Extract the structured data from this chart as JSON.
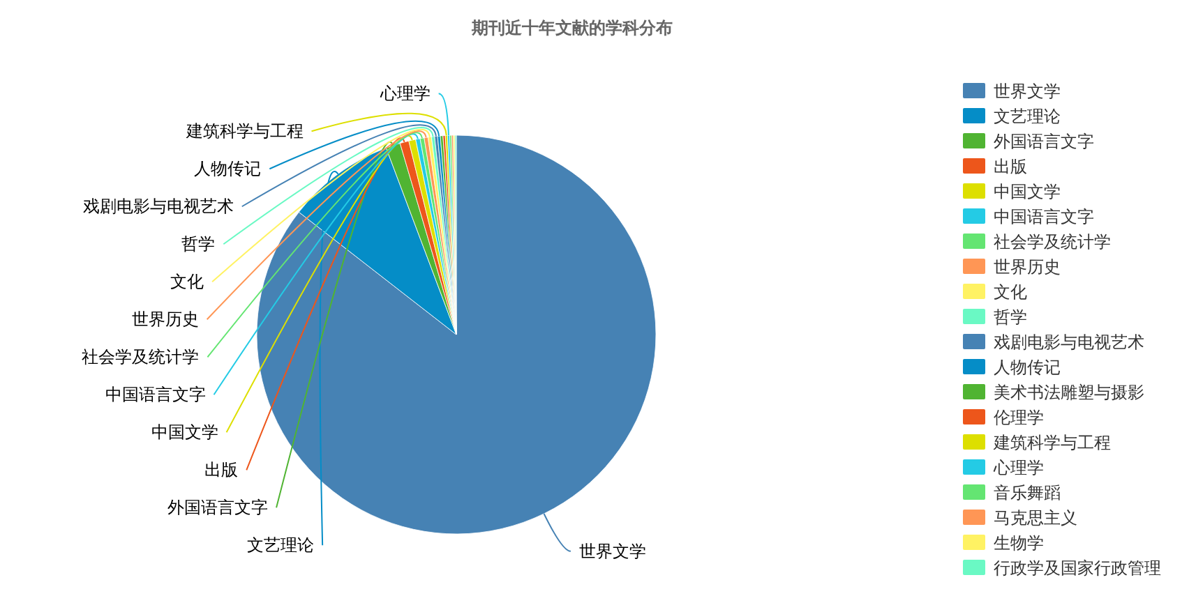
{
  "chart_data": {
    "type": "pie",
    "title": "期刊近十年文献的学科分布",
    "categories": [
      "世界文学",
      "文艺理论",
      "外国语言文字",
      "出版",
      "中国文学",
      "中国语言文字",
      "社会学及统计学",
      "世界历史",
      "文化",
      "哲学",
      "戏剧电影与电视艺术",
      "人物传记",
      "美术书法雕塑与摄影",
      "伦理学",
      "建筑科学与工程",
      "心理学",
      "音乐舞蹈",
      "马克思主义",
      "生物学",
      "行政学及国家行政管理"
    ],
    "values": [
      85.53,
      8.75,
      1.17,
      0.72,
      0.56,
      0.36,
      0.33,
      0.31,
      0.28,
      0.25,
      0.24,
      0.22,
      0.21,
      0.19,
      0.18,
      0.17,
      0.15,
      0.14,
      0.13,
      0.11
    ],
    "colors": [
      "#4682b4",
      "#058dc7",
      "#50b432",
      "#ed561b",
      "#dddf00",
      "#24cbe5",
      "#64e572",
      "#ff9655",
      "#fff263",
      "#6af9c4",
      "#4682b4",
      "#058dc7",
      "#50b432",
      "#ed561b",
      "#dddf00",
      "#24cbe5",
      "#64e572",
      "#ff9655",
      "#fff263",
      "#6af9c4"
    ],
    "value_labels": [
      "世界文学",
      "文艺理论",
      "外国语言文字",
      "出版",
      "中国文学",
      "中国语言文字",
      "社会学及统计学",
      "世界历史",
      "文化",
      "哲学",
      "戏剧电影与电视艺术",
      "人物传记",
      null,
      null,
      "建筑科学与工程",
      "心理学",
      null,
      null,
      null,
      null
    ],
    "legend": "right"
  }
}
